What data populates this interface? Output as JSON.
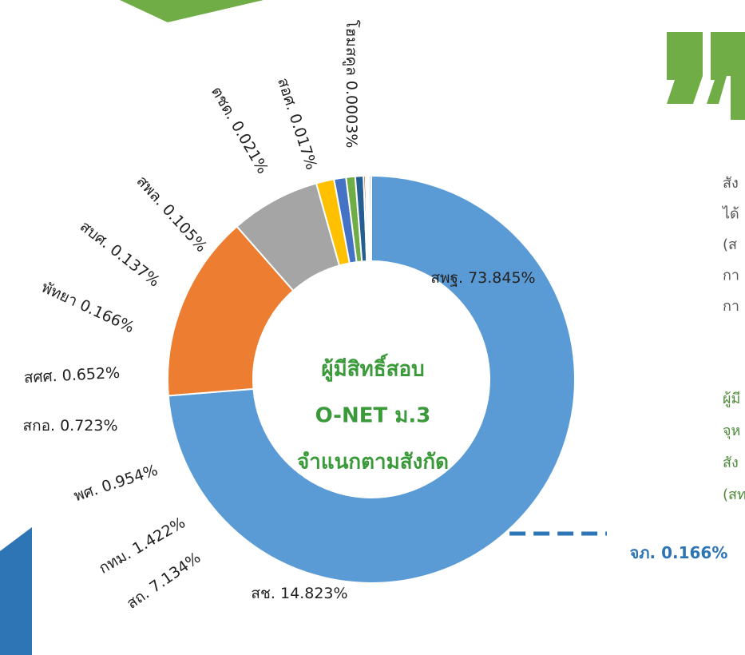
{
  "chart_data": {
    "type": "donut",
    "title": [
      "ผู้มีสิทธิ์สอบ",
      "O-NET ม.3",
      "จำแนกตามสังกัด"
    ],
    "categories": [
      "สพฐ.",
      "สช.",
      "สถ.",
      "กทม.",
      "พศ.",
      "สกอ.",
      "สศศ.",
      "พัทยา",
      "สบศ.",
      "สพล.",
      "ตชด.",
      "สอศ.",
      "โฮมสคูล",
      "จภ."
    ],
    "values": [
      73.845,
      14.823,
      7.134,
      1.422,
      0.954,
      0.723,
      0.652,
      0.166,
      0.137,
      0.105,
      0.021,
      0.017,
      0.0003,
      0.166
    ],
    "value_labels": [
      "73.845%",
      "14.823%",
      "7.134%",
      "1.422%",
      "0.954%",
      "0.723%",
      "0.652%",
      "0.166%",
      "0.137%",
      "0.105%",
      "0.021%",
      "0.017%",
      "0.0003%",
      "0.166%"
    ],
    "colors": [
      "#5b9bd5",
      "#ed7d31",
      "#a5a5a5",
      "#ffc000",
      "#4472c4",
      "#70ad47",
      "#255e91",
      "#9e480e",
      "#636363",
      "#997300",
      "#264478",
      "#43682b",
      "#c49a34",
      "#9dc3e6"
    ]
  },
  "side_text": [
    "สัง",
    "ได้",
    "(ส",
    "กา",
    "กา"
  ],
  "side_text_green": [
    "ผู้มี",
    "จุห",
    "สัง",
    "(สท"
  ]
}
